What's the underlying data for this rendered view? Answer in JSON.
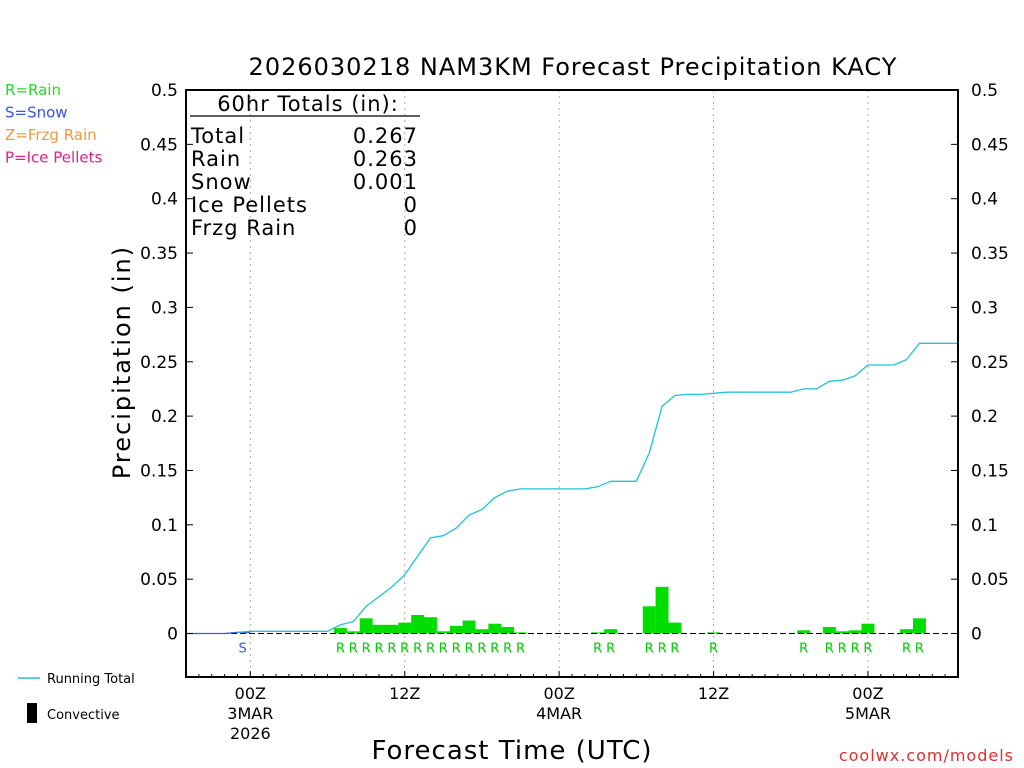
{
  "chart_data": {
    "type": "bar",
    "title": "2026030218 NAM3KM Forecast Precipitation KACY",
    "xlabel": "Forecast Time (UTC)",
    "ylabel": "Precipitation (in)",
    "ylim": [
      -0.04,
      0.5
    ],
    "yticks": [
      0,
      0.05,
      0.1,
      0.15,
      0.2,
      0.25,
      0.3,
      0.35,
      0.4,
      0.45,
      0.5
    ],
    "ytick_labels": [
      "0",
      "0.05",
      "0.1",
      "0.15",
      "0.2",
      "0.25",
      "0.3",
      "0.35",
      "0.4",
      "0.45",
      "0.5"
    ],
    "xlim_hours": [
      -5,
      55
    ],
    "x_ticks": [
      {
        "hour": 0,
        "label": "00Z",
        "sub1": "3MAR",
        "sub2": "2026"
      },
      {
        "hour": 12,
        "label": "12Z",
        "sub1": "",
        "sub2": ""
      },
      {
        "hour": 24,
        "label": "00Z",
        "sub1": "4MAR",
        "sub2": ""
      },
      {
        "hour": 36,
        "label": "12Z",
        "sub1": "",
        "sub2": ""
      },
      {
        "hour": 48,
        "label": "00Z",
        "sub1": "5MAR",
        "sub2": ""
      }
    ],
    "totals_box": {
      "heading": "60hr Totals (in):",
      "rows": [
        {
          "label": "Total",
          "value": "0.267"
        },
        {
          "label": "Rain",
          "value": "0.263"
        },
        {
          "label": "Snow",
          "value": "0.001"
        },
        {
          "label": "Ice Pellets",
          "value": "0"
        },
        {
          "label": "Frzg Rain",
          "value": "0"
        }
      ]
    },
    "type_legend": [
      {
        "text": "R=Rain",
        "color": "#22dd22"
      },
      {
        "text": "S=Snow",
        "color": "#3355ee"
      },
      {
        "text": "Z=Frzg Rain",
        "color": "#f09a3a"
      },
      {
        "text": "P=Ice Pellets",
        "color": "#e0208a"
      }
    ],
    "series_legend": {
      "running_total": "Running Total",
      "convective": "Convective"
    },
    "colors": {
      "bar": "#00dd00",
      "running_total": "#22c4d4",
      "snow_line": "#3355ee",
      "rain_letter": "#00cc00",
      "snow_letter": "#3355ee",
      "credit": "#dd3030"
    },
    "hourly_precip": [
      {
        "hour": 7,
        "value": 0.005,
        "type": "R"
      },
      {
        "hour": 8,
        "value": 0.002,
        "type": "R"
      },
      {
        "hour": 9,
        "value": 0.014,
        "type": "R"
      },
      {
        "hour": 10,
        "value": 0.008,
        "type": "R"
      },
      {
        "hour": 11,
        "value": 0.008,
        "type": "R"
      },
      {
        "hour": 12,
        "value": 0.01,
        "type": "R"
      },
      {
        "hour": 13,
        "value": 0.017,
        "type": "R"
      },
      {
        "hour": 14,
        "value": 0.015,
        "type": "R"
      },
      {
        "hour": 15,
        "value": 0.002,
        "type": "R"
      },
      {
        "hour": 16,
        "value": 0.007,
        "type": "R"
      },
      {
        "hour": 17,
        "value": 0.012,
        "type": "R"
      },
      {
        "hour": 18,
        "value": 0.004,
        "type": "R"
      },
      {
        "hour": 19,
        "value": 0.009,
        "type": "R"
      },
      {
        "hour": 20,
        "value": 0.006,
        "type": "R"
      },
      {
        "hour": 21,
        "value": 0.001,
        "type": "R"
      },
      {
        "hour": 27,
        "value": 0.001,
        "type": "R"
      },
      {
        "hour": 28,
        "value": 0.004,
        "type": "R"
      },
      {
        "hour": 31,
        "value": 0.025,
        "type": "R"
      },
      {
        "hour": 32,
        "value": 0.043,
        "type": "R"
      },
      {
        "hour": 33,
        "value": 0.01,
        "type": "R"
      },
      {
        "hour": 36,
        "value": 0.001,
        "type": "R"
      },
      {
        "hour": 43,
        "value": 0.003,
        "type": "R"
      },
      {
        "hour": 45,
        "value": 0.006,
        "type": "R"
      },
      {
        "hour": 46,
        "value": 0.002,
        "type": "R"
      },
      {
        "hour": 47,
        "value": 0.003,
        "type": "R"
      },
      {
        "hour": 48,
        "value": 0.009,
        "type": "R"
      },
      {
        "hour": 51,
        "value": 0.004,
        "type": "R"
      },
      {
        "hour": 52,
        "value": 0.014,
        "type": "R"
      }
    ],
    "type_markers": [
      {
        "hour": -0.6,
        "type": "S"
      },
      {
        "hour": 7,
        "type": "R"
      },
      {
        "hour": 8,
        "type": "R"
      },
      {
        "hour": 9,
        "type": "R"
      },
      {
        "hour": 10,
        "type": "R"
      },
      {
        "hour": 11,
        "type": "R"
      },
      {
        "hour": 12,
        "type": "R"
      },
      {
        "hour": 13,
        "type": "R"
      },
      {
        "hour": 14,
        "type": "R"
      },
      {
        "hour": 15,
        "type": "R"
      },
      {
        "hour": 16,
        "type": "R"
      },
      {
        "hour": 17,
        "type": "R"
      },
      {
        "hour": 18,
        "type": "R"
      },
      {
        "hour": 19,
        "type": "R"
      },
      {
        "hour": 20,
        "type": "R"
      },
      {
        "hour": 21,
        "type": "R"
      },
      {
        "hour": 27,
        "type": "R"
      },
      {
        "hour": 28,
        "type": "R"
      },
      {
        "hour": 31,
        "type": "R"
      },
      {
        "hour": 32,
        "type": "R"
      },
      {
        "hour": 33,
        "type": "R"
      },
      {
        "hour": 36,
        "type": "R"
      },
      {
        "hour": 43,
        "type": "R"
      },
      {
        "hour": 45,
        "type": "R"
      },
      {
        "hour": 46,
        "type": "R"
      },
      {
        "hour": 47,
        "type": "R"
      },
      {
        "hour": 48,
        "type": "R"
      },
      {
        "hour": 51,
        "type": "R"
      },
      {
        "hour": 52,
        "type": "R"
      }
    ],
    "snow_line": {
      "hours": [
        -5,
        -3,
        -2,
        -1,
        0
      ],
      "values": [
        0,
        0,
        0,
        0.001,
        0.001
      ]
    },
    "running_total": {
      "hours": [
        -1,
        0,
        1,
        2,
        3,
        4,
        5,
        6,
        7,
        8,
        9,
        10,
        11,
        12,
        13,
        14,
        15,
        16,
        17,
        18,
        19,
        20,
        21,
        22,
        23,
        24,
        25,
        26,
        27,
        28,
        29,
        30,
        31,
        32,
        33,
        34,
        35,
        36,
        37,
        38,
        39,
        40,
        41,
        42,
        43,
        44,
        45,
        46,
        47,
        48,
        49,
        50,
        51,
        52,
        53,
        54,
        55
      ],
      "values": [
        0.001,
        0.002,
        0.002,
        0.002,
        0.002,
        0.002,
        0.002,
        0.002,
        0.008,
        0.011,
        0.025,
        0.034,
        0.043,
        0.054,
        0.071,
        0.088,
        0.09,
        0.097,
        0.109,
        0.114,
        0.125,
        0.131,
        0.133,
        0.133,
        0.133,
        0.133,
        0.133,
        0.133,
        0.135,
        0.14,
        0.14,
        0.14,
        0.166,
        0.209,
        0.219,
        0.22,
        0.22,
        0.221,
        0.222,
        0.222,
        0.222,
        0.222,
        0.222,
        0.222,
        0.225,
        0.225,
        0.232,
        0.233,
        0.237,
        0.247,
        0.247,
        0.247,
        0.252,
        0.267,
        0.267,
        0.267,
        0.267
      ]
    }
  },
  "credit": "coolwx.com/models"
}
